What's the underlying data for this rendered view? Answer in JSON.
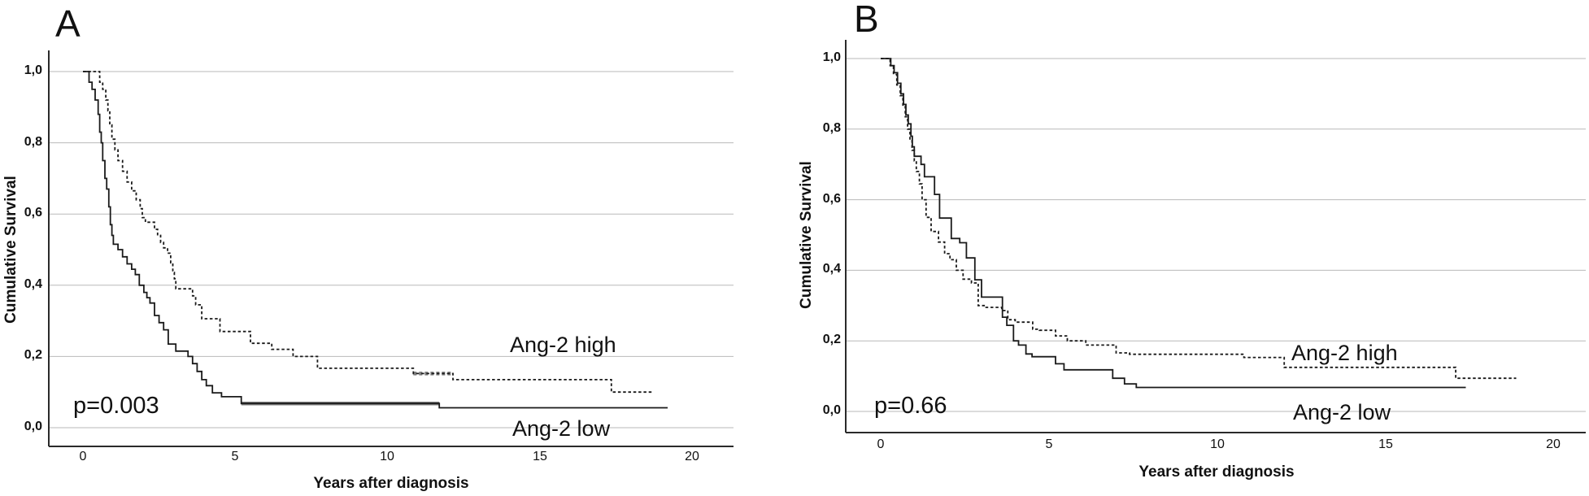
{
  "colors": {
    "background": "#ffffff",
    "curve": "#1a1a1a",
    "gridline": "#b9b9b9",
    "axis": "#2a2a2a",
    "censor_overlap": "#7d7d7d"
  },
  "chart_data": [
    {
      "type": "line",
      "subtype": "kaplan-meier-step",
      "panel_label": "A",
      "p_value": "p=0.003",
      "xlabel": "Years after diagnosis",
      "ylabel": "Cumulative Survival",
      "x_ticks": [
        0,
        5,
        10,
        15,
        20
      ],
      "x_tick_labels": [
        "0",
        "5",
        "10",
        "15",
        "20"
      ],
      "y_ticks": [
        1.0,
        0.8,
        0.6,
        0.4,
        0.2,
        0.0
      ],
      "y_tick_labels": [
        "1,0",
        "0,8",
        "0,6",
        "0,4",
        "0,2",
        "0,0"
      ],
      "xlim": [
        -1.1,
        21.4
      ],
      "ylim": [
        0.0,
        1.0
      ],
      "grid": "horizontal",
      "legend_position": "labels-on-plot",
      "series": [
        {
          "name": "Ang-2 high",
          "label": "Ang-2 high",
          "style": "dashed",
          "color": "#1a1a1a",
          "points": [
            [
              0,
              1.0
            ],
            [
              0.55,
              0.97
            ],
            [
              0.65,
              0.95
            ],
            [
              0.75,
              0.92
            ],
            [
              0.82,
              0.89
            ],
            [
              0.88,
              0.85
            ],
            [
              0.95,
              0.81
            ],
            [
              1.05,
              0.78
            ],
            [
              1.15,
              0.75
            ],
            [
              1.3,
              0.72
            ],
            [
              1.45,
              0.69
            ],
            [
              1.6,
              0.665
            ],
            [
              1.75,
              0.64
            ],
            [
              1.88,
              0.615
            ],
            [
              1.95,
              0.59
            ],
            [
              2.05,
              0.577
            ],
            [
              2.35,
              0.557
            ],
            [
              2.45,
              0.54
            ],
            [
              2.55,
              0.52
            ],
            [
              2.65,
              0.505
            ],
            [
              2.78,
              0.49
            ],
            [
              2.88,
              0.463
            ],
            [
              2.95,
              0.436
            ],
            [
              3.0,
              0.418
            ],
            [
              3.05,
              0.39
            ],
            [
              3.6,
              0.37
            ],
            [
              3.7,
              0.345
            ],
            [
              3.9,
              0.306
            ],
            [
              4.5,
              0.27
            ],
            [
              5.5,
              0.237
            ],
            [
              6.2,
              0.22
            ],
            [
              6.9,
              0.2
            ],
            [
              7.7,
              0.167
            ],
            [
              10.85,
              0.152
            ],
            [
              12.15,
              0.135
            ],
            [
              17.35,
              0.1
            ],
            [
              18.7,
              0.1
            ]
          ],
          "censor_overlap_segments": [
            {
              "from": 10.85,
              "to": 12.15,
              "value": 0.152
            }
          ]
        },
        {
          "name": "Ang-2 low",
          "label": "Ang-2 low",
          "style": "solid",
          "color": "#1a1a1a",
          "points": [
            [
              0,
              1.0
            ],
            [
              0.2,
              0.97
            ],
            [
              0.3,
              0.95
            ],
            [
              0.4,
              0.92
            ],
            [
              0.5,
              0.88
            ],
            [
              0.55,
              0.83
            ],
            [
              0.6,
              0.8
            ],
            [
              0.65,
              0.75
            ],
            [
              0.72,
              0.7
            ],
            [
              0.78,
              0.67
            ],
            [
              0.85,
              0.62
            ],
            [
              0.9,
              0.57
            ],
            [
              0.95,
              0.54
            ],
            [
              1.0,
              0.515
            ],
            [
              1.15,
              0.5
            ],
            [
              1.3,
              0.48
            ],
            [
              1.45,
              0.46
            ],
            [
              1.6,
              0.445
            ],
            [
              1.72,
              0.43
            ],
            [
              1.85,
              0.4
            ],
            [
              2.0,
              0.38
            ],
            [
              2.1,
              0.365
            ],
            [
              2.2,
              0.35
            ],
            [
              2.35,
              0.315
            ],
            [
              2.5,
              0.295
            ],
            [
              2.65,
              0.275
            ],
            [
              2.8,
              0.235
            ],
            [
              3.05,
              0.215
            ],
            [
              3.45,
              0.2
            ],
            [
              3.6,
              0.18
            ],
            [
              3.75,
              0.158
            ],
            [
              3.9,
              0.135
            ],
            [
              4.05,
              0.118
            ],
            [
              4.25,
              0.098
            ],
            [
              4.55,
              0.087
            ],
            [
              5.2,
              0.068
            ],
            [
              11.7,
              0.056
            ],
            [
              19.2,
              0.056
            ]
          ],
          "censor_overlap_segments": [
            {
              "from": 5.2,
              "to": 11.7,
              "value": 0.068
            }
          ]
        }
      ]
    },
    {
      "type": "line",
      "subtype": "kaplan-meier-step",
      "panel_label": "B",
      "p_value": "p=0.66",
      "xlabel": "Years after diagnosis",
      "ylabel": "Cumulative Survival",
      "x_ticks": [
        0,
        5,
        10,
        15,
        20
      ],
      "x_tick_labels": [
        "0",
        "5",
        "10",
        "15",
        "20"
      ],
      "y_ticks": [
        1.0,
        0.8,
        0.6,
        0.4,
        0.2,
        0.0
      ],
      "y_tick_labels": [
        "1,0",
        "0,8",
        "0,6",
        "0,4",
        "0,2",
        "0,0"
      ],
      "xlim": [
        -1.0,
        21.0
      ],
      "ylim": [
        0.0,
        1.0
      ],
      "grid": "horizontal",
      "legend_position": "labels-on-plot",
      "series": [
        {
          "name": "Ang-2 high",
          "label": "Ang-2 high",
          "style": "dashed",
          "color": "#1a1a1a",
          "points": [
            [
              0,
              1.0
            ],
            [
              0.28,
              0.98
            ],
            [
              0.38,
              0.955
            ],
            [
              0.48,
              0.925
            ],
            [
              0.58,
              0.895
            ],
            [
              0.66,
              0.865
            ],
            [
              0.73,
              0.835
            ],
            [
              0.8,
              0.8
            ],
            [
              0.87,
              0.77
            ],
            [
              0.93,
              0.74
            ],
            [
              1.0,
              0.71
            ],
            [
              1.06,
              0.68
            ],
            [
              1.15,
              0.645
            ],
            [
              1.23,
              0.6
            ],
            [
              1.35,
              0.55
            ],
            [
              1.5,
              0.51
            ],
            [
              1.72,
              0.48
            ],
            [
              1.9,
              0.447
            ],
            [
              2.06,
              0.43
            ],
            [
              2.25,
              0.4
            ],
            [
              2.45,
              0.375
            ],
            [
              2.7,
              0.364
            ],
            [
              2.9,
              0.3
            ],
            [
              3.1,
              0.295
            ],
            [
              3.6,
              0.286
            ],
            [
              3.78,
              0.26
            ],
            [
              4.0,
              0.253
            ],
            [
              4.52,
              0.233
            ],
            [
              4.72,
              0.23
            ],
            [
              5.2,
              0.214
            ],
            [
              5.55,
              0.2
            ],
            [
              6.1,
              0.188
            ],
            [
              7.0,
              0.166
            ],
            [
              7.4,
              0.162
            ],
            [
              10.8,
              0.153
            ],
            [
              12.0,
              0.125
            ],
            [
              17.1,
              0.094
            ],
            [
              18.9,
              0.094
            ]
          ],
          "censor_overlap_segments": []
        },
        {
          "name": "Ang-2 low",
          "label": "Ang-2 low",
          "style": "solid",
          "color": "#1a1a1a",
          "points": [
            [
              0,
              1.0
            ],
            [
              0.3,
              0.98
            ],
            [
              0.4,
              0.96
            ],
            [
              0.5,
              0.93
            ],
            [
              0.6,
              0.9
            ],
            [
              0.68,
              0.87
            ],
            [
              0.75,
              0.84
            ],
            [
              0.82,
              0.815
            ],
            [
              0.9,
              0.78
            ],
            [
              0.94,
              0.75
            ],
            [
              1.0,
              0.723
            ],
            [
              1.2,
              0.7
            ],
            [
              1.3,
              0.665
            ],
            [
              1.6,
              0.615
            ],
            [
              1.75,
              0.548
            ],
            [
              2.1,
              0.49
            ],
            [
              2.35,
              0.478
            ],
            [
              2.55,
              0.435
            ],
            [
              2.8,
              0.373
            ],
            [
              3.0,
              0.324
            ],
            [
              3.62,
              0.267
            ],
            [
              3.75,
              0.244
            ],
            [
              3.95,
              0.2
            ],
            [
              4.1,
              0.188
            ],
            [
              4.32,
              0.163
            ],
            [
              4.5,
              0.155
            ],
            [
              5.2,
              0.135
            ],
            [
              5.45,
              0.118
            ],
            [
              6.9,
              0.094
            ],
            [
              7.25,
              0.078
            ],
            [
              7.6,
              0.068
            ],
            [
              17.4,
              0.068
            ]
          ],
          "censor_overlap_segments": []
        }
      ]
    }
  ]
}
